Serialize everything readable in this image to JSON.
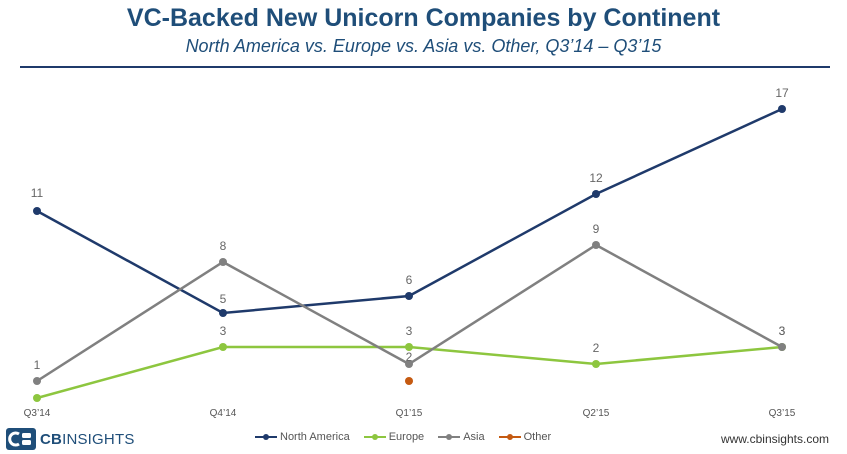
{
  "chart_data": {
    "type": "line",
    "title": "VC-Backed New Unicorn Companies by Continent",
    "subtitle": "North America vs. Europe vs. Asia vs. Other, Q3’14 – Q3’15",
    "categories": [
      "Q3’14",
      "Q4’14",
      "Q1’15",
      "Q2’15",
      "Q3’15"
    ],
    "ylim": [
      0,
      18
    ],
    "grid": false,
    "legend_position": "bottom-center",
    "series": [
      {
        "name": "North America",
        "color": "#1f3a6b",
        "values": [
          11,
          5,
          6,
          12,
          17
        ],
        "labels": [
          "11",
          "5",
          "6",
          "12",
          "17"
        ]
      },
      {
        "name": "Europe",
        "color": "#8dc63f",
        "values": [
          0,
          3,
          3,
          2,
          3
        ],
        "labels": [
          null,
          "3",
          "3",
          "2",
          "3"
        ]
      },
      {
        "name": "Asia",
        "color": "#808080",
        "values": [
          1,
          8,
          2,
          9,
          3
        ],
        "labels": [
          "1",
          "8",
          "2",
          "9",
          "3"
        ]
      },
      {
        "name": "Other",
        "color": "#c55a11",
        "values": [
          null,
          null,
          1,
          null,
          null
        ],
        "labels": [
          null,
          null,
          null,
          null,
          null
        ]
      }
    ]
  },
  "footer": {
    "brand_bold": "CB",
    "brand_rest": "INSIGHTS",
    "site": "www.cbinsights.com"
  }
}
